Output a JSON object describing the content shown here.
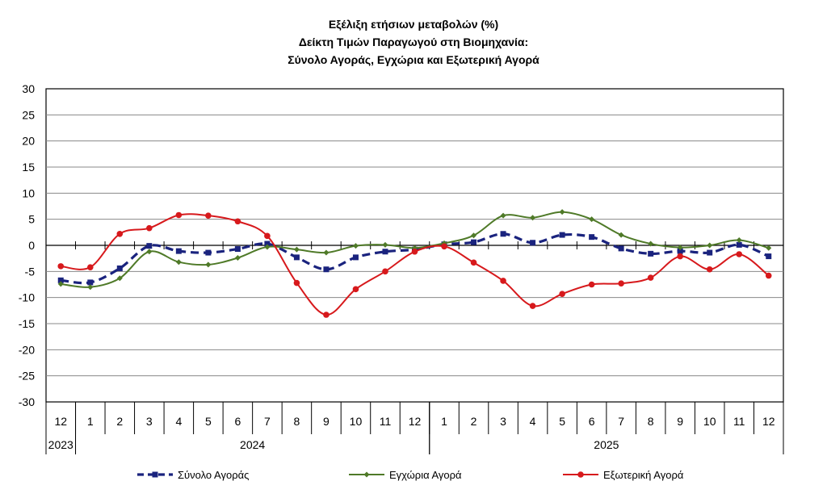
{
  "chart_data": {
    "type": "line",
    "title": [
      "Εξέλιξη ετήσιων μεταβολών (%)",
      "Δείκτη Τιμών Παραγωγού στη Βιομηχανία:",
      "Σύνολο Αγοράς, Εγχώρια και Εξωτερική Αγορά"
    ],
    "categories": [
      "12",
      "1",
      "2",
      "3",
      "4",
      "5",
      "6",
      "7",
      "8",
      "9",
      "10",
      "11",
      "12",
      "1",
      "2",
      "3",
      "4",
      "5",
      "6",
      "7",
      "8",
      "9",
      "10",
      "11",
      "12"
    ],
    "years": [
      {
        "label": "2023",
        "span": 1
      },
      {
        "label": "2024",
        "span": 12
      },
      {
        "label": "2025",
        "span": 12
      }
    ],
    "ylim": [
      -30,
      30
    ],
    "yticks": [
      30,
      25,
      20,
      15,
      10,
      5,
      0,
      -5,
      -10,
      -15,
      -20,
      -25,
      -30
    ],
    "grid": true,
    "legend_position": "bottom",
    "series": [
      {
        "name": "Σύνολο Αγοράς",
        "color": "#1a237e",
        "style": "dashed",
        "marker": "square",
        "values": [
          -6.7,
          -7.1,
          -4.4,
          -0.1,
          -1.1,
          -1.4,
          -0.7,
          0.3,
          -2.3,
          -4.6,
          -2.3,
          -1.2,
          -0.8,
          0.2,
          0.6,
          2.2,
          0.5,
          2.0,
          1.6,
          -0.6,
          -1.6,
          -1.1,
          -1.4,
          0.1,
          -2.1
        ]
      },
      {
        "name": "Εγχώρια Αγορά",
        "color": "#4f7a28",
        "style": "solid",
        "marker": "diamond",
        "values": [
          -7.4,
          -8.0,
          -6.3,
          -1.2,
          -3.2,
          -3.7,
          -2.4,
          -0.3,
          -0.8,
          -1.4,
          -0.1,
          0.1,
          -0.5,
          0.4,
          1.9,
          5.7,
          5.3,
          6.4,
          5.0,
          2.0,
          0.3,
          -0.4,
          0.0,
          1.0,
          -0.5
        ]
      },
      {
        "name": "Εξωτερική Αγορά",
        "color": "#d7191c",
        "style": "solid",
        "marker": "circle",
        "values": [
          -4.0,
          -4.2,
          2.2,
          3.3,
          5.8,
          5.7,
          4.6,
          1.8,
          -7.2,
          -13.3,
          -8.4,
          -5.0,
          -1.2,
          -0.2,
          -3.3,
          -6.8,
          -11.6,
          -9.3,
          -7.5,
          -7.3,
          -6.2,
          -2.1,
          -4.6,
          -1.7,
          -5.8
        ]
      }
    ]
  }
}
